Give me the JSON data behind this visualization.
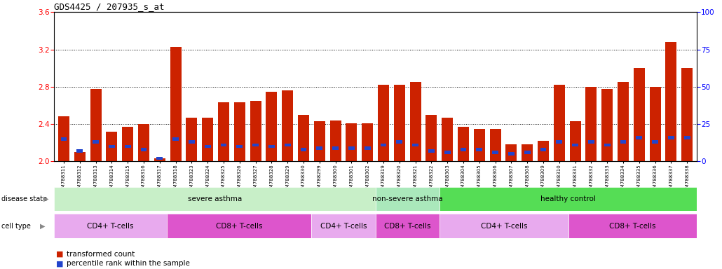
{
  "title": "GDS4425 / 207935_s_at",
  "samples": [
    "GSM788311",
    "GSM788312",
    "GSM788313",
    "GSM788314",
    "GSM788315",
    "GSM788316",
    "GSM788317",
    "GSM788318",
    "GSM788323",
    "GSM788324",
    "GSM788325",
    "GSM788326",
    "GSM788327",
    "GSM788328",
    "GSM788329",
    "GSM788330",
    "GSM788299",
    "GSM788300",
    "GSM788301",
    "GSM788302",
    "GSM788319",
    "GSM788320",
    "GSM788321",
    "GSM788322",
    "GSM788303",
    "GSM788304",
    "GSM788305",
    "GSM788306",
    "GSM788307",
    "GSM788308",
    "GSM788309",
    "GSM788310",
    "GSM788331",
    "GSM788332",
    "GSM788333",
    "GSM788334",
    "GSM788335",
    "GSM788336",
    "GSM788337",
    "GSM788338"
  ],
  "red_values": [
    2.48,
    2.1,
    2.78,
    2.32,
    2.37,
    2.4,
    2.03,
    3.23,
    2.47,
    2.47,
    2.63,
    2.63,
    2.65,
    2.75,
    2.76,
    2.5,
    2.43,
    2.44,
    2.41,
    2.41,
    2.82,
    2.82,
    2.85,
    2.5,
    2.47,
    2.37,
    2.35,
    2.35,
    2.18,
    2.18,
    2.22,
    2.82,
    2.43,
    2.8,
    2.78,
    2.85,
    3.0,
    2.8,
    3.28,
    3.0
  ],
  "blue_pct": [
    15,
    7,
    13,
    10,
    10,
    8,
    2,
    15,
    13,
    10,
    11,
    10,
    11,
    10,
    11,
    8,
    9,
    9,
    9,
    9,
    11,
    13,
    11,
    7,
    6,
    8,
    8,
    6,
    5,
    6,
    8,
    13,
    11,
    13,
    11,
    13,
    16,
    13,
    16,
    16
  ],
  "ylim": [
    2.0,
    3.6
  ],
  "y2lim": [
    0,
    100
  ],
  "yticks": [
    2.0,
    2.4,
    2.8,
    3.2,
    3.6
  ],
  "y2ticks": [
    0,
    25,
    50,
    75,
    100
  ],
  "red_color": "#cc2200",
  "blue_color": "#2244cc",
  "bar_width": 0.7,
  "disease_state_groups": [
    {
      "start": 0,
      "end": 20,
      "label": "severe asthma",
      "color": "#c8efc8"
    },
    {
      "start": 20,
      "end": 24,
      "label": "non-severe asthma",
      "color": "#aae8bb"
    },
    {
      "start": 24,
      "end": 40,
      "label": "healthy control",
      "color": "#55dd55"
    }
  ],
  "cell_type_groups": [
    {
      "start": 0,
      "end": 7,
      "label": "CD4+ T-cells",
      "color": "#e8aaee"
    },
    {
      "start": 7,
      "end": 16,
      "label": "CD8+ T-cells",
      "color": "#dd55cc"
    },
    {
      "start": 16,
      "end": 20,
      "label": "CD4+ T-cells",
      "color": "#e8aaee"
    },
    {
      "start": 20,
      "end": 24,
      "label": "CD8+ T-cells",
      "color": "#dd55cc"
    },
    {
      "start": 24,
      "end": 32,
      "label": "CD4+ T-cells",
      "color": "#e8aaee"
    },
    {
      "start": 32,
      "end": 40,
      "label": "CD8+ T-cells",
      "color": "#dd55cc"
    }
  ]
}
